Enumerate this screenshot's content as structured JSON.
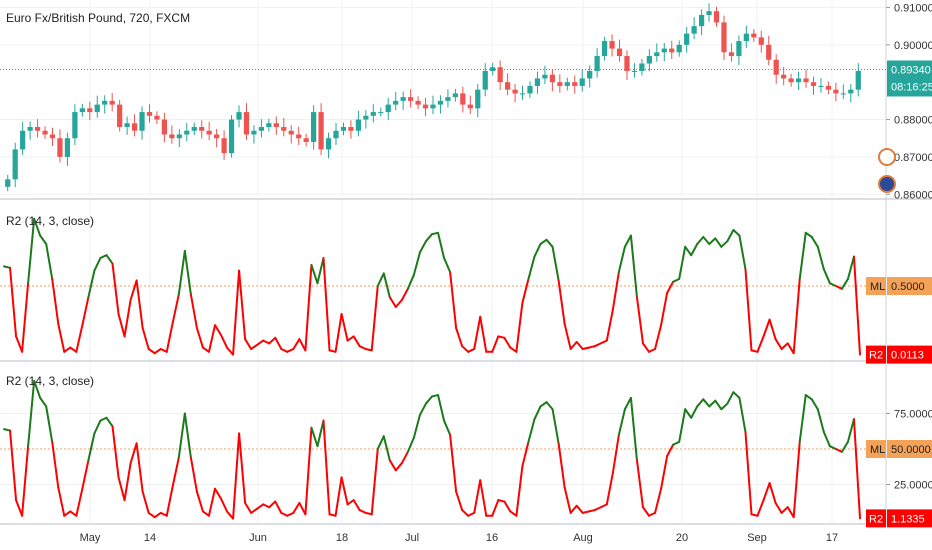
{
  "chart_data": [
    {
      "type": "candlestick",
      "title": "Euro Fx/British Pound, 720, FXCM",
      "ylim": [
        0.859,
        0.912
      ],
      "yticks": [
        {
          "v": 0.91,
          "label": "0.91000"
        },
        {
          "v": 0.9,
          "label": "0.90000"
        },
        {
          "v": 0.88,
          "label": "0.88000"
        },
        {
          "v": 0.87,
          "label": "0.87000"
        },
        {
          "v": 0.86,
          "label": "0.86000"
        }
      ],
      "last_price": 0.8934,
      "last_price_label": "0.89340",
      "countdown_label": "08:16:25",
      "colors": {
        "up": "#26a69a",
        "down": "#ef5350",
        "price_line": "#26a69a",
        "price_box": "#26a69a"
      },
      "close_series": [
        0.864,
        0.872,
        0.877,
        0.878,
        0.877,
        0.876,
        0.875,
        0.87,
        0.875,
        0.882,
        0.883,
        0.882,
        0.884,
        0.885,
        0.884,
        0.878,
        0.879,
        0.877,
        0.882,
        0.881,
        0.88,
        0.876,
        0.875,
        0.876,
        0.877,
        0.878,
        0.877,
        0.876,
        0.875,
        0.871,
        0.88,
        0.882,
        0.876,
        0.877,
        0.878,
        0.879,
        0.878,
        0.877,
        0.876,
        0.875,
        0.874,
        0.882,
        0.872,
        0.875,
        0.877,
        0.878,
        0.877,
        0.88,
        0.881,
        0.882,
        0.882,
        0.884,
        0.885,
        0.886,
        0.885,
        0.884,
        0.883,
        0.884,
        0.885,
        0.886,
        0.887,
        0.884,
        0.883,
        0.888,
        0.893,
        0.894,
        0.89,
        0.888,
        0.887,
        0.887,
        0.889,
        0.891,
        0.892,
        0.89,
        0.889,
        0.89,
        0.889,
        0.891,
        0.893,
        0.897,
        0.901,
        0.899,
        0.897,
        0.893,
        0.893,
        0.895,
        0.897,
        0.898,
        0.899,
        0.898,
        0.9,
        0.903,
        0.905,
        0.908,
        0.909,
        0.906,
        0.898,
        0.897,
        0.901,
        0.903,
        0.902,
        0.9,
        0.896,
        0.892,
        0.891,
        0.89,
        0.891,
        0.89,
        0.889,
        0.889,
        0.888,
        0.887,
        0.887,
        0.888,
        0.893
      ]
    },
    {
      "type": "line",
      "title": "R2 (14, 3, close)",
      "ylim": [
        0,
        1
      ],
      "midline": 0.5,
      "midline_tag": "ML",
      "midline_label": "0.5000",
      "last_value_tag": "R2",
      "last_value_label": "0.0113",
      "colors": {
        "above": "#1b7a1b",
        "below": "#ff0000",
        "midline": "#f5a259",
        "tag_ml": "#f5a259",
        "tag_r2": "#ff0000"
      },
      "values": [
        0.64,
        0.63,
        0.14,
        0.03,
        0.52,
        0.98,
        0.86,
        0.8,
        0.55,
        0.23,
        0.03,
        0.06,
        0.03,
        0.22,
        0.42,
        0.61,
        0.7,
        0.72,
        0.66,
        0.3,
        0.14,
        0.4,
        0.54,
        0.2,
        0.05,
        0.02,
        0.05,
        0.03,
        0.24,
        0.44,
        0.75,
        0.44,
        0.2,
        0.06,
        0.03,
        0.22,
        0.15,
        0.06,
        0.01,
        0.61,
        0.12,
        0.05,
        0.08,
        0.11,
        0.09,
        0.13,
        0.05,
        0.03,
        0.05,
        0.12,
        0.04,
        0.65,
        0.52,
        0.7,
        0.04,
        0.03,
        0.3,
        0.11,
        0.14,
        0.07,
        0.05,
        0.04,
        0.5,
        0.59,
        0.42,
        0.35,
        0.4,
        0.48,
        0.58,
        0.74,
        0.82,
        0.87,
        0.88,
        0.7,
        0.6,
        0.2,
        0.07,
        0.03,
        0.05,
        0.28,
        0.03,
        0.03,
        0.14,
        0.13,
        0.06,
        0.03,
        0.38,
        0.55,
        0.71,
        0.8,
        0.83,
        0.78,
        0.54,
        0.23,
        0.05,
        0.1,
        0.05,
        0.06,
        0.07,
        0.09,
        0.11,
        0.33,
        0.6,
        0.78,
        0.86,
        0.42,
        0.09,
        0.03,
        0.05,
        0.22,
        0.45,
        0.53,
        0.55,
        0.78,
        0.72,
        0.8,
        0.85,
        0.8,
        0.84,
        0.78,
        0.82,
        0.9,
        0.86,
        0.62,
        0.04,
        0.03,
        0.14,
        0.26,
        0.12,
        0.05,
        0.09,
        0.02,
        0.55,
        0.88,
        0.85,
        0.78,
        0.62,
        0.52,
        0.5,
        0.48,
        0.55,
        0.71,
        0.01
      ]
    },
    {
      "type": "line",
      "title": "R2 (14, 3, close)",
      "ylim": [
        0,
        100
      ],
      "yticks": [
        {
          "v": 75,
          "label": "75.0000"
        },
        {
          "v": 25,
          "label": "25.0000"
        }
      ],
      "midline": 50,
      "midline_tag": "ML",
      "midline_label": "50.0000",
      "last_value_tag": "R2",
      "last_value_label": "1.1335",
      "colors": {
        "above": "#1b7a1b",
        "below": "#ff0000",
        "midline": "#f5a259",
        "tag_ml": "#f5a259",
        "tag_r2": "#ff0000"
      },
      "values": [
        64,
        63,
        14,
        3,
        52,
        98,
        86,
        80,
        55,
        23,
        3,
        6,
        3,
        22,
        42,
        61,
        70,
        72,
        66,
        30,
        14,
        40,
        54,
        20,
        5,
        2,
        5,
        3,
        24,
        44,
        75,
        44,
        20,
        6,
        3,
        22,
        15,
        6,
        1,
        61,
        12,
        5,
        8,
        11,
        9,
        13,
        5,
        3,
        5,
        12,
        4,
        65,
        52,
        70,
        4,
        3,
        30,
        11,
        14,
        7,
        5,
        4,
        50,
        59,
        42,
        35,
        40,
        48,
        58,
        74,
        82,
        87,
        88,
        70,
        60,
        20,
        7,
        3,
        5,
        28,
        3,
        3,
        14,
        13,
        6,
        3,
        38,
        55,
        71,
        80,
        83,
        78,
        54,
        23,
        5,
        10,
        5,
        6,
        7,
        9,
        11,
        33,
        60,
        78,
        86,
        42,
        9,
        3,
        5,
        22,
        45,
        53,
        55,
        78,
        72,
        80,
        85,
        80,
        84,
        78,
        82,
        90,
        86,
        62,
        4,
        3,
        14,
        26,
        12,
        5,
        9,
        2,
        55,
        88,
        85,
        78,
        62,
        52,
        50,
        48,
        55,
        71,
        1.1335
      ]
    }
  ],
  "x_axis": {
    "ticks": [
      "May",
      "14",
      "Jun",
      "18",
      "Jul",
      "16",
      "Aug",
      "20",
      "Sep",
      "17"
    ]
  }
}
